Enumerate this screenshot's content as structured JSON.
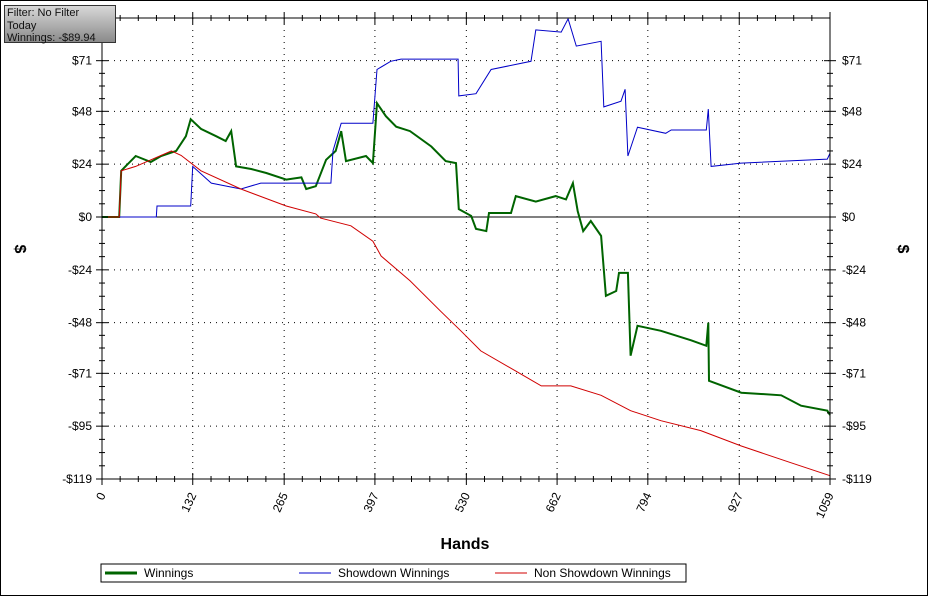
{
  "info": {
    "filter": "Filter: No Filter",
    "period": "Today",
    "winnings": "Winnings: -$89.94"
  },
  "chart_data": {
    "type": "line",
    "title": "",
    "xlabel": "Hands",
    "ylabel": "$",
    "xlim": [
      0,
      1059
    ],
    "ylim": [
      -119,
      90
    ],
    "grid": true,
    "legend_placement": "bottom",
    "xticks": [
      0,
      132,
      265,
      397,
      530,
      662,
      794,
      927,
      1059
    ],
    "xtick_labels": [
      "0",
      "132",
      "265",
      "397",
      "530",
      "662",
      "794",
      "927",
      "1059"
    ],
    "yticks": [
      71,
      48,
      24,
      0,
      -24,
      -48,
      -71,
      -95,
      -119
    ],
    "ytick_labels": [
      "$71",
      "$48",
      "$24",
      "$0",
      "-$24",
      "-$48",
      "-$71",
      "-$95",
      "-$119"
    ],
    "series": [
      {
        "name": "Winnings",
        "color": "#006400",
        "width": 2,
        "points": [
          [
            0,
            0
          ],
          [
            25,
            0
          ],
          [
            28,
            21
          ],
          [
            49,
            27.7
          ],
          [
            71,
            25
          ],
          [
            86,
            27.7
          ],
          [
            108,
            30
          ],
          [
            122,
            36.7
          ],
          [
            129,
            44.4
          ],
          [
            144,
            40
          ],
          [
            166,
            36.7
          ],
          [
            180,
            34.5
          ],
          [
            188,
            39
          ],
          [
            195,
            23
          ],
          [
            217,
            21.8
          ],
          [
            239,
            20
          ],
          [
            268,
            17
          ],
          [
            290,
            18
          ],
          [
            297,
            12.7
          ],
          [
            311,
            14
          ],
          [
            326,
            26
          ],
          [
            340,
            30
          ],
          [
            348,
            39
          ],
          [
            355,
            25.4
          ],
          [
            384,
            27.7
          ],
          [
            394,
            24.5
          ],
          [
            400,
            51.7
          ],
          [
            413,
            45.8
          ],
          [
            428,
            41
          ],
          [
            448,
            39
          ],
          [
            479,
            32
          ],
          [
            500,
            25.4
          ],
          [
            515,
            24.5
          ],
          [
            519,
            3.6
          ],
          [
            537,
            0.5
          ],
          [
            544,
            -5.4
          ],
          [
            559,
            -6.4
          ],
          [
            563,
            1.8
          ],
          [
            595,
            1.8
          ],
          [
            602,
            9.5
          ],
          [
            631,
            7
          ],
          [
            660,
            9.5
          ],
          [
            675,
            8
          ],
          [
            685,
            15.4
          ],
          [
            692,
            2.7
          ],
          [
            700,
            -6.4
          ],
          [
            711,
            -1.8
          ],
          [
            726,
            -8.6
          ],
          [
            733,
            -35.8
          ],
          [
            748,
            -33.6
          ],
          [
            752,
            -25.4
          ],
          [
            765,
            -25.4
          ],
          [
            769,
            -63
          ],
          [
            779,
            -49.4
          ],
          [
            813,
            -51.7
          ],
          [
            857,
            -56
          ],
          [
            879,
            -58.5
          ],
          [
            882,
            -48
          ],
          [
            883,
            -74.4
          ],
          [
            930,
            -79.8
          ],
          [
            988,
            -81
          ],
          [
            1017,
            -85.7
          ],
          [
            1055,
            -88
          ],
          [
            1059,
            -89.94
          ]
        ]
      },
      {
        "name": "Showdown Winnings",
        "color": "#0000c8",
        "width": 1,
        "points": [
          [
            0,
            0
          ],
          [
            79,
            0
          ],
          [
            80,
            5
          ],
          [
            129,
            5
          ],
          [
            132,
            23
          ],
          [
            159,
            15.4
          ],
          [
            202,
            12.7
          ],
          [
            231,
            15.4
          ],
          [
            333,
            15.4
          ],
          [
            336,
            30
          ],
          [
            348,
            42.6
          ],
          [
            394,
            42.6
          ],
          [
            400,
            67
          ],
          [
            420,
            70.7
          ],
          [
            435,
            71.7
          ],
          [
            518,
            71.7
          ],
          [
            519,
            55
          ],
          [
            544,
            56
          ],
          [
            566,
            67
          ],
          [
            624,
            70.7
          ],
          [
            631,
            85
          ],
          [
            668,
            84
          ],
          [
            678,
            90
          ],
          [
            690,
            77.6
          ],
          [
            726,
            79.8
          ],
          [
            730,
            50
          ],
          [
            755,
            52.6
          ],
          [
            761,
            58
          ],
          [
            765,
            27.7
          ],
          [
            779,
            40.8
          ],
          [
            820,
            38
          ],
          [
            828,
            39.5
          ],
          [
            879,
            39.5
          ],
          [
            882,
            49
          ],
          [
            886,
            23
          ],
          [
            930,
            24.5
          ],
          [
            1055,
            26.3
          ],
          [
            1059,
            29
          ]
        ]
      },
      {
        "name": "Non Showdown Winnings",
        "color": "#d00000",
        "width": 1,
        "points": [
          [
            0,
            0
          ],
          [
            25,
            0
          ],
          [
            28,
            21
          ],
          [
            49,
            23
          ],
          [
            101,
            30
          ],
          [
            115,
            28
          ],
          [
            144,
            21
          ],
          [
            202,
            12.7
          ],
          [
            268,
            5
          ],
          [
            311,
            1.4
          ],
          [
            318,
            -0.5
          ],
          [
            362,
            -4
          ],
          [
            394,
            -11
          ],
          [
            406,
            -17.7
          ],
          [
            448,
            -29
          ],
          [
            492,
            -42.6
          ],
          [
            522,
            -51.7
          ],
          [
            551,
            -60.8
          ],
          [
            602,
            -70
          ],
          [
            639,
            -76.7
          ],
          [
            682,
            -76.7
          ],
          [
            726,
            -81
          ],
          [
            769,
            -88
          ],
          [
            813,
            -92.5
          ],
          [
            871,
            -97
          ],
          [
            930,
            -104
          ],
          [
            1002,
            -111.6
          ],
          [
            1059,
            -117.5
          ]
        ]
      }
    ]
  }
}
